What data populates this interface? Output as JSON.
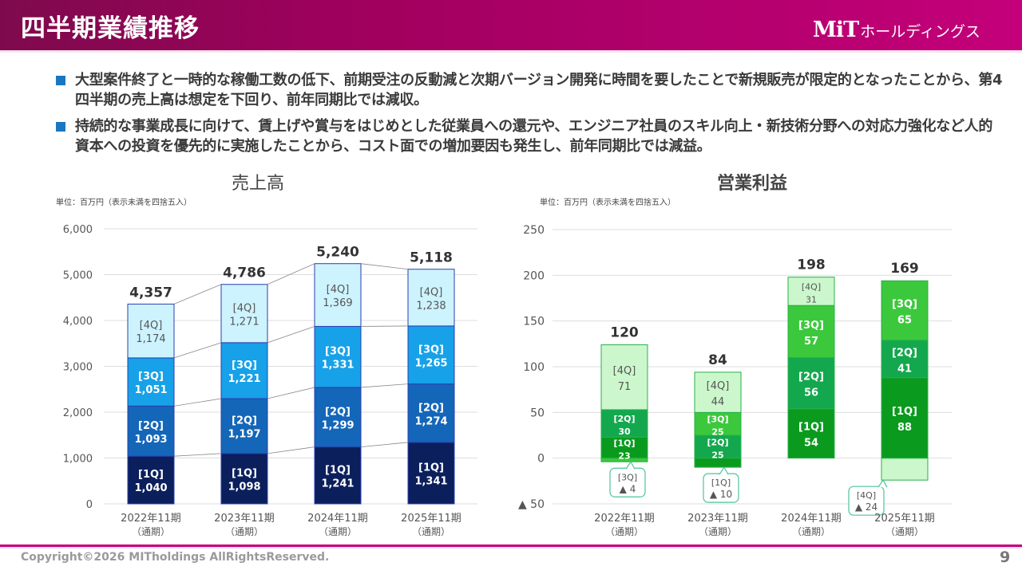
{
  "header": {
    "title": "四半期業績推移",
    "logo_mark": "MiT",
    "logo_text": "ホールディングス"
  },
  "bullets": [
    "大型案件終了と一時的な稼働工数の低下、前期受注の反動減と次期バージョン開発に時間を要したことで新規販売が限定的となったことから、第4四半期の売上高は想定を下回り、前年同期比では減収。",
    "持続的な事業成長に向けて、賃上げや賞与をはじめとした従業員への還元や、エンジニア社員のスキル向上・新技術分野への対応力強化など人的資本への投資を優先的に実施したことから、コスト面での増加要因も発生し、前年同期比では減益。"
  ],
  "colors": {
    "brand": "#c4007a",
    "bullet": "#1a78c2",
    "sales_1q": "#0b1f5c",
    "sales_2q": "#1466b8",
    "sales_3q": "#17a1e8",
    "sales_4q": "#cdf3ff",
    "sales_border": "#2a3fb0",
    "op_1q": "#0a9a1e",
    "op_2q": "#13a84e",
    "op_3q": "#3cc83c",
    "op_4q": "#ccf7cc",
    "op_border": "#27b04a"
  },
  "chart_data": [
    {
      "type": "bar",
      "stacked": true,
      "title": "売上高",
      "unit_note": "単位：百万円（表示未満を四捨五入）",
      "categories": [
        "2022年11期",
        "2023年11期",
        "2024年11期",
        "2025年11期"
      ],
      "category_sub": "（通期）",
      "ylim": [
        0,
        6000
      ],
      "yticks": [
        0,
        1000,
        2000,
        3000,
        4000,
        5000,
        6000
      ],
      "ytick_labels": [
        "0",
        "1,000",
        "2,000",
        "3,000",
        "4,000",
        "5,000",
        "6,000"
      ],
      "grid": true,
      "series": [
        {
          "name": "[1Q]",
          "values": [
            1040,
            1098,
            1241,
            1341
          ],
          "labels": [
            "1,040",
            "1,098",
            "1,241",
            "1,341"
          ]
        },
        {
          "name": "[2Q]",
          "values": [
            1093,
            1197,
            1299,
            1274
          ],
          "labels": [
            "1,093",
            "1,197",
            "1,299",
            "1,274"
          ]
        },
        {
          "name": "[3Q]",
          "values": [
            1051,
            1221,
            1331,
            1265
          ],
          "labels": [
            "1,051",
            "1,221",
            "1,331",
            "1,265"
          ]
        },
        {
          "name": "[4Q]",
          "values": [
            1174,
            1271,
            1369,
            1238
          ],
          "labels": [
            "1,174",
            "1,271",
            "1,369",
            "1,238"
          ]
        }
      ],
      "totals": [
        4357,
        4786,
        5240,
        5118
      ],
      "total_labels": [
        "4,357",
        "4,786",
        "5,240",
        "5,118"
      ]
    },
    {
      "type": "bar",
      "stacked": true,
      "title": "営業利益",
      "unit_note": "単位：百万円（表示未満を四捨五入）",
      "categories": [
        "2022年11期",
        "2023年11期",
        "2024年11期",
        "2025年11期"
      ],
      "category_sub": "（通期）",
      "ylim": [
        -50,
        250
      ],
      "yticks": [
        -50,
        0,
        50,
        100,
        150,
        200,
        250
      ],
      "ytick_labels": [
        "▲ 50",
        "0",
        "50",
        "100",
        "150",
        "200",
        "250"
      ],
      "grid": true,
      "series": [
        {
          "name": "[1Q]",
          "values": [
            23,
            -10,
            54,
            88
          ],
          "labels": [
            "23",
            "▲ 10",
            "54",
            "88"
          ]
        },
        {
          "name": "[2Q]",
          "values": [
            30,
            25,
            56,
            41
          ],
          "labels": [
            "30",
            "25",
            "56",
            "41"
          ]
        },
        {
          "name": "[3Q]",
          "values": [
            -4,
            25,
            57,
            65
          ],
          "labels": [
            "▲ 4",
            "25",
            "57",
            "65"
          ]
        },
        {
          "name": "[4Q]",
          "values": [
            71,
            44,
            31,
            -24
          ],
          "labels": [
            "71",
            "44",
            "31",
            "▲ 24"
          ]
        }
      ],
      "totals": [
        120,
        84,
        198,
        169
      ],
      "total_labels": [
        "120",
        "84",
        "198",
        "169"
      ]
    }
  ],
  "footer": {
    "copyright": "Copyright©2026 MITholdings AllRightsReserved.",
    "page_number": "9"
  }
}
